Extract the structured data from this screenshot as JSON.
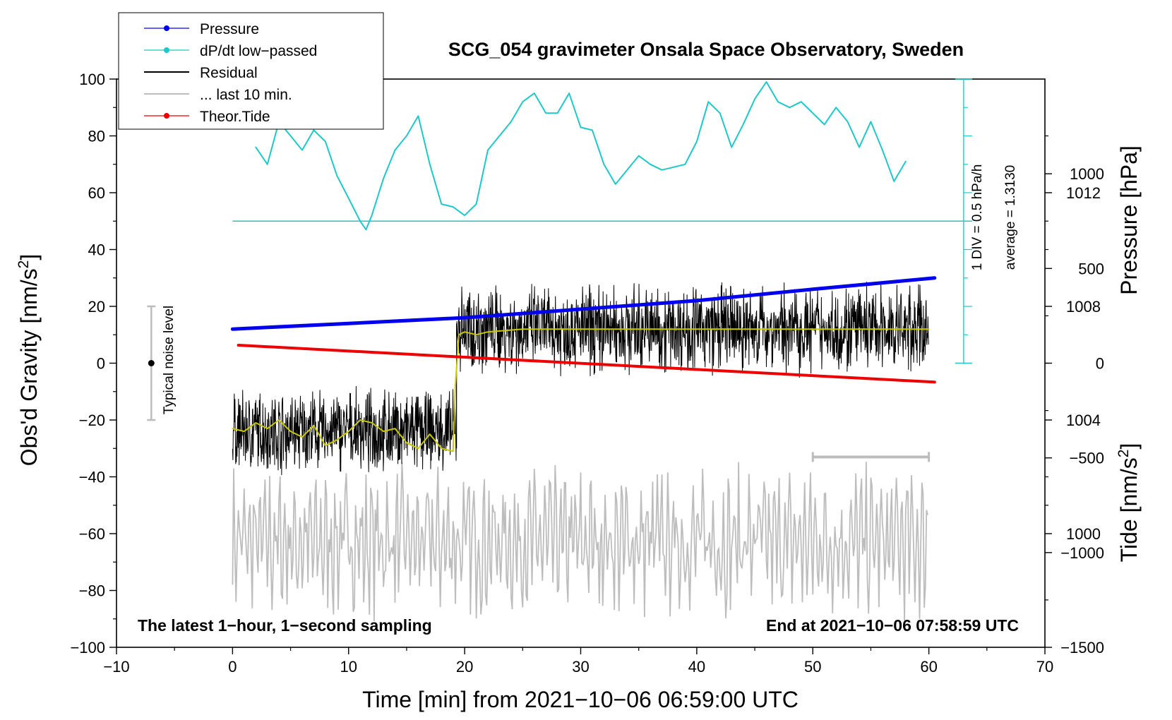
{
  "chart_data": {
    "type": "line",
    "title": "SCG_054 gravimeter Onsala Space Observatory, Sweden",
    "xlabel": "Time [min] from 2021−10−06 06:59:00 UTC",
    "ylabel_left": "Obs'd Gravity [nm/s",
    "ylabel_left_sup": "2",
    "ylabel_left_close": "]",
    "ylabel_pressure": "Pressure [hPa]",
    "ylabel_tide": "Tide [nm/s",
    "ylabel_tide_sup": "2",
    "ylabel_tide_close": "]",
    "xlim": [
      -10,
      70
    ],
    "ylim": [
      -100,
      100
    ],
    "pressure_lim": [
      996,
      1016
    ],
    "tide_lim": [
      -1500,
      1500
    ],
    "x_ticks": [
      -10,
      0,
      10,
      20,
      30,
      40,
      50,
      60,
      70
    ],
    "x_tick_labels": [
      "−10",
      "0",
      "10",
      "20",
      "30",
      "40",
      "50",
      "60",
      "70"
    ],
    "y_ticks": [
      -100,
      -80,
      -60,
      -40,
      -20,
      0,
      20,
      40,
      60,
      80,
      100
    ],
    "y_tick_labels": [
      "−100",
      "−80",
      "−60",
      "−40",
      "−20",
      "0",
      "20",
      "40",
      "60",
      "80",
      "100"
    ],
    "pressure_ticks": [
      1000,
      1004,
      1008,
      1012
    ],
    "pressure_tick_labels": [
      "1000",
      "1004",
      "1008",
      "1012"
    ],
    "tide_ticks": [
      -1500,
      -1000,
      -500,
      0,
      500,
      1000
    ],
    "tide_tick_labels": [
      "−1500",
      "−1000",
      "−500",
      "0",
      "500",
      "1000"
    ],
    "legend": [
      {
        "name": "Pressure",
        "color": "#0000ee",
        "style": "line-dot"
      },
      {
        "name": "dP/dt low−passed",
        "color": "#1ec8c8",
        "style": "line-dot"
      },
      {
        "name": "Residual",
        "color": "#000000",
        "style": "line"
      },
      {
        "name": "... last 10 min.",
        "color": "#bdbdbd",
        "style": "line"
      },
      {
        "name": "Theor.Tide",
        "color": "#ee0000",
        "style": "line-dot"
      }
    ],
    "series": [
      {
        "name": "Pressure",
        "axis": "pressure",
        "color": "#0000ee",
        "x": [
          0,
          10,
          20,
          30,
          40,
          50,
          60.5
        ],
        "values": [
          1007.2,
          1007.4,
          1007.6,
          1007.9,
          1008.2,
          1008.6,
          1009.0
        ]
      },
      {
        "name": "dP/dt low−passed",
        "axis": "gravity",
        "color": "#1ec8c8",
        "x": [
          2,
          3,
          4,
          5,
          6,
          7,
          8,
          9,
          10,
          11,
          11.5,
          12,
          13,
          14,
          15,
          16,
          17,
          18,
          19,
          20,
          21,
          22,
          23,
          24,
          25,
          26,
          27,
          28,
          29,
          30,
          31,
          32,
          33,
          34,
          35,
          36,
          37,
          38,
          39,
          40,
          41,
          42,
          43,
          44,
          45,
          46,
          47,
          48,
          49,
          50,
          51,
          52,
          53,
          54,
          55,
          56,
          57,
          58
        ],
        "values": [
          76,
          70,
          85,
          80,
          75,
          82,
          78,
          66,
          58,
          50,
          47,
          52,
          65,
          75,
          80,
          87,
          70,
          56,
          55,
          52,
          56,
          75,
          80,
          85,
          92,
          95,
          88,
          88,
          95,
          83,
          82,
          70,
          63,
          68,
          73,
          70,
          68,
          69,
          70,
          78,
          92,
          88,
          76,
          84,
          93,
          99,
          92,
          90,
          92,
          88,
          84,
          90,
          85,
          76,
          85,
          75,
          64,
          71
        ]
      },
      {
        "name": "Residual (smoothed)",
        "axis": "gravity",
        "color": "#c8c800",
        "x": [
          0,
          1,
          2,
          3,
          4,
          5,
          6,
          7,
          8,
          9,
          10,
          11,
          12,
          13,
          14,
          15,
          16,
          17,
          18,
          19,
          19.2,
          19.5,
          20,
          21,
          22,
          25,
          30,
          35,
          40,
          45,
          50,
          55,
          60
        ],
        "values": [
          -23,
          -24,
          -21,
          -23,
          -20,
          -24,
          -26,
          -22,
          -29,
          -27,
          -24,
          -20,
          -21,
          -24,
          -23,
          -28,
          -30,
          -25,
          -30,
          -31,
          -8,
          10,
          11,
          10,
          11,
          12,
          12,
          12,
          12,
          12,
          12,
          12,
          12
        ]
      },
      {
        "name": "Theor.Tide",
        "axis": "tide",
        "color": "#ee0000",
        "x": [
          0.5,
          60.5
        ],
        "values": [
          95,
          -100
        ]
      }
    ],
    "residual_segments": [
      {
        "x_start": 0,
        "x_end": 19.3,
        "mean": -24,
        "spread": 20
      },
      {
        "x_start": 19.3,
        "x_end": 60,
        "mean": 12,
        "spread": 22
      }
    ],
    "last_10_min": {
      "x_start": 0,
      "x_end": 60,
      "mean": -63,
      "spread": 30,
      "bar_x": [
        50,
        60
      ],
      "bar_y": -33
    },
    "noise_indicator": {
      "x": -7,
      "center": 0,
      "range": [
        -20,
        20
      ],
      "label": "Typical noise level"
    },
    "dpdt_scale": {
      "label_div": "1 DIV = 0.5 hPa/h",
      "label_avg": "average = 1.3130",
      "x": 63,
      "baseline_y": 50,
      "axis_top": 100,
      "axis_bottom": 0
    },
    "footer_left": "The latest 1−hour, 1−second sampling",
    "footer_right": "End at 2021−10−06 07:58:59 UTC"
  }
}
